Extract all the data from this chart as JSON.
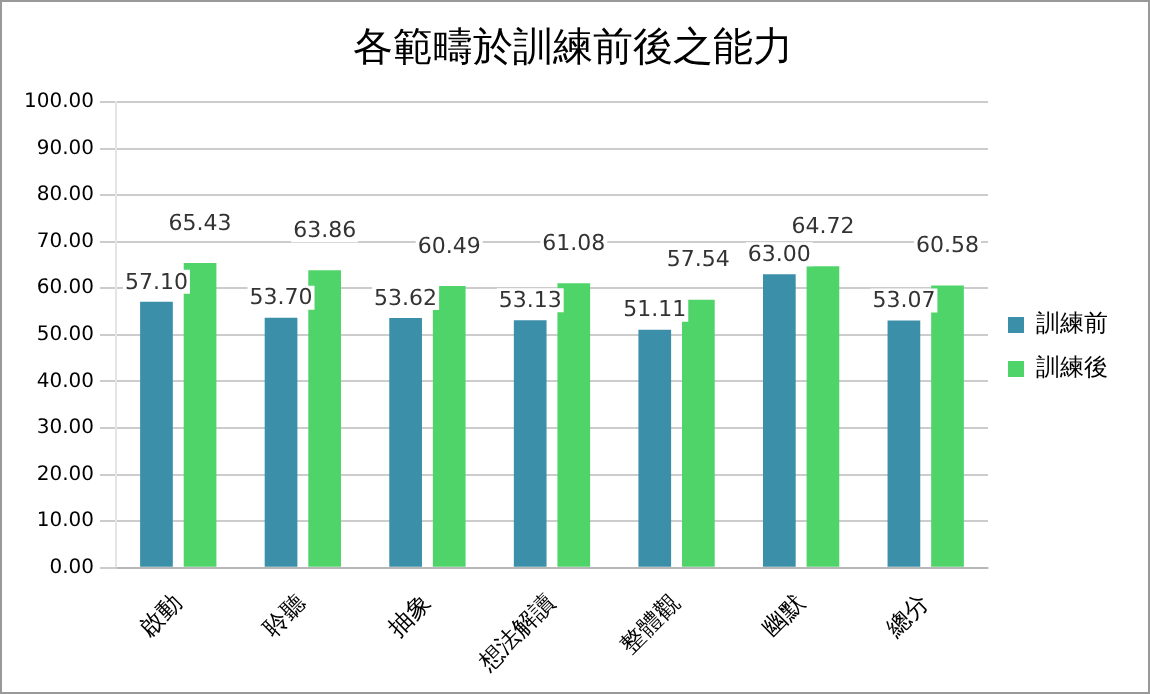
{
  "chart_data": {
    "type": "bar",
    "title": "各範疇於訓練前後之能力",
    "categories": [
      "啟動",
      "聆聽",
      "抽象",
      "想法解讀",
      "整體觀",
      "幽默",
      "總分"
    ],
    "series": [
      {
        "name": "訓練前",
        "color": "#3b8fa8",
        "values": [
          57.1,
          53.7,
          53.62,
          53.13,
          51.11,
          63.0,
          53.07
        ],
        "value_labels": [
          "57.10",
          "53.70",
          "53.62",
          "53.13",
          "51.11",
          "63.00",
          "53.07"
        ]
      },
      {
        "name": "訓練後",
        "color": "#4fd46a",
        "values": [
          65.43,
          63.86,
          60.49,
          61.08,
          57.54,
          64.72,
          60.58
        ],
        "value_labels": [
          "65.43",
          "63.86",
          "60.49",
          "61.08",
          "57.54",
          "64.72",
          "60.58"
        ]
      }
    ],
    "ylim": [
      0,
      100
    ],
    "yticks": [
      {
        "value": 0,
        "label": "0.00"
      },
      {
        "value": 10,
        "label": "10.00"
      },
      {
        "value": 20,
        "label": "20.00"
      },
      {
        "value": 30,
        "label": "30.00"
      },
      {
        "value": 40,
        "label": "40.00"
      },
      {
        "value": 50,
        "label": "50.00"
      },
      {
        "value": 60,
        "label": "60.00"
      },
      {
        "value": 70,
        "label": "70.00"
      },
      {
        "value": 80,
        "label": "80.00"
      },
      {
        "value": 90,
        "label": "90.00"
      },
      {
        "value": 100,
        "label": "100.00"
      }
    ],
    "grid": "y",
    "legend": "right"
  }
}
